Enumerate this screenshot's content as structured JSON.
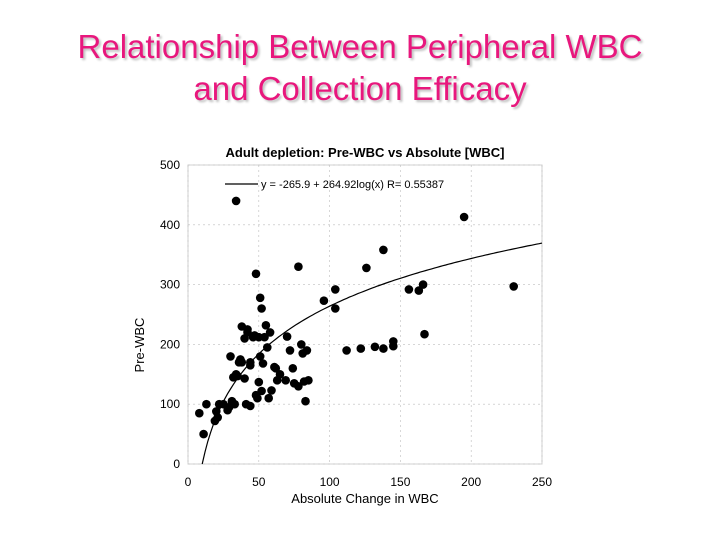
{
  "slide": {
    "title_line1": "Relationship Between Peripheral WBC",
    "title_line2": "and Collection Efficacy"
  },
  "colors": {
    "title": "#e8177d",
    "points": "#000000",
    "axis": "#000000",
    "grid": "#bdbdbd"
  },
  "chart_data": {
    "type": "scatter",
    "title": "Adult depletion: Pre-WBC vs Absolute [WBC]",
    "xlabel": "Absolute Change in WBC",
    "ylabel": "Pre-WBC",
    "xlim": [
      0,
      250
    ],
    "ylim": [
      0,
      500
    ],
    "x_ticks": [
      "0",
      "50",
      "100",
      "150",
      "200",
      "250"
    ],
    "y_ticks": [
      "0",
      "100",
      "200",
      "300",
      "400",
      "500"
    ],
    "grid": true,
    "legend": {
      "position": "top-left",
      "label": "y = -265.9 + 264.92log(x)   R= 0.55387"
    },
    "fit": {
      "type": "log10",
      "intercept": -265.9,
      "slope": 264.92,
      "x_range": [
        10,
        250
      ]
    },
    "series": [
      {
        "points": [
          [
            34,
            440
          ],
          [
            48,
            318
          ],
          [
            78,
            330
          ],
          [
            96,
            273
          ],
          [
            104,
            292
          ],
          [
            104,
            260
          ],
          [
            126,
            328
          ],
          [
            138,
            358
          ],
          [
            195,
            413
          ],
          [
            230,
            297
          ],
          [
            156,
            292
          ],
          [
            163,
            290
          ],
          [
            166,
            300
          ],
          [
            167,
            217
          ],
          [
            122,
            193
          ],
          [
            112,
            190
          ],
          [
            132,
            196
          ],
          [
            138,
            193
          ],
          [
            145,
            205
          ],
          [
            145,
            197
          ],
          [
            8,
            85
          ],
          [
            11,
            50
          ],
          [
            13,
            100
          ],
          [
            19,
            72
          ],
          [
            20,
            88
          ],
          [
            21,
            78
          ],
          [
            22,
            100
          ],
          [
            25,
            100
          ],
          [
            28,
            90
          ],
          [
            29,
            95
          ],
          [
            30,
            180
          ],
          [
            31,
            105
          ],
          [
            32,
            145
          ],
          [
            33,
            100
          ],
          [
            34,
            150
          ],
          [
            35,
            147
          ],
          [
            36,
            170
          ],
          [
            37,
            175
          ],
          [
            38,
            170
          ],
          [
            38,
            230
          ],
          [
            40,
            143
          ],
          [
            40,
            210
          ],
          [
            41,
            100
          ],
          [
            42,
            225
          ],
          [
            42,
            220
          ],
          [
            44,
            165
          ],
          [
            44,
            97
          ],
          [
            44,
            170
          ],
          [
            46,
            212
          ],
          [
            47,
            215
          ],
          [
            48,
            115
          ],
          [
            49,
            110
          ],
          [
            50,
            137
          ],
          [
            50,
            212
          ],
          [
            51,
            180
          ],
          [
            51,
            278
          ],
          [
            52,
            122
          ],
          [
            52,
            260
          ],
          [
            53,
            168
          ],
          [
            54,
            212
          ],
          [
            55,
            232
          ],
          [
            56,
            195
          ],
          [
            57,
            110
          ],
          [
            58,
            220
          ],
          [
            59,
            123
          ],
          [
            61,
            162
          ],
          [
            62,
            160
          ],
          [
            63,
            140
          ],
          [
            65,
            150
          ],
          [
            69,
            140
          ],
          [
            70,
            213
          ],
          [
            72,
            190
          ],
          [
            74,
            160
          ],
          [
            75,
            135
          ],
          [
            78,
            130
          ],
          [
            80,
            200
          ],
          [
            81,
            185
          ],
          [
            82,
            138
          ],
          [
            83,
            105
          ],
          [
            84,
            190
          ],
          [
            85,
            140
          ]
        ]
      }
    ]
  }
}
